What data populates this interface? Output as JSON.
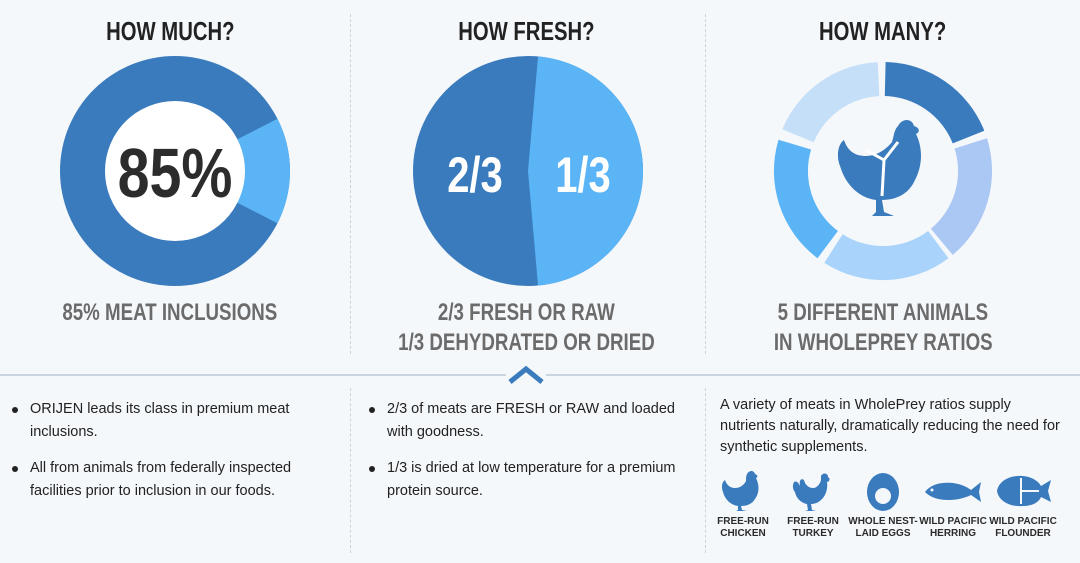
{
  "columns": [
    {
      "heading": "HOW MUCH?",
      "caption": "85% MEAT INCLUSIONS"
    },
    {
      "heading": "HOW FRESH?",
      "caption_line1": "2/3 FRESH OR RAW",
      "caption_line2": "1/3 DEHYDRATED OR DRIED"
    },
    {
      "heading": "HOW MANY?",
      "caption_line1": "5 DIFFERENT ANIMALS",
      "caption_line2": "IN WHOLEPREY RATIOS"
    }
  ],
  "charts": {
    "how_much": {
      "value_label": "85%",
      "meat_fraction": 0.85
    },
    "how_fresh": {
      "fresh_label": "2/3",
      "dried_label": "1/3",
      "fresh_fraction": 0.6667
    }
  },
  "bullets_left": [
    "ORIJEN leads its class in premium meat inclusions.",
    "All from animals from federally inspected facilities prior to inclusion in our foods."
  ],
  "bullets_mid": [
    "2/3 of meats are FRESH or RAW and loaded with goodness.",
    "1/3 is dried at low temperature for a premium protein source."
  ],
  "paragraph": "A variety of meats in WholePrey ratios supply nutrients naturally, dramatically reducing the need for synthetic supplements.",
  "animals": [
    {
      "label": "FREE-RUN\nCHICKEN",
      "icon": "chicken-icon"
    },
    {
      "label": "FREE-RUN\nTURKEY",
      "icon": "turkey-icon"
    },
    {
      "label": "WHOLE NEST-\nLAID EGGS",
      "icon": "egg-icon"
    },
    {
      "label": "WILD PACIFIC\nHERRING",
      "icon": "herring-icon"
    },
    {
      "label": "WILD PACIFIC\nFLOUNDER",
      "icon": "flounder-icon"
    }
  ],
  "colors": {
    "dark_blue": "#3a7bbd",
    "light_blue": "#5ab4f5",
    "pale_blue": "#a9d3fa",
    "lavender": "#abc7f3",
    "caption_gray": "#6b6b6b"
  }
}
